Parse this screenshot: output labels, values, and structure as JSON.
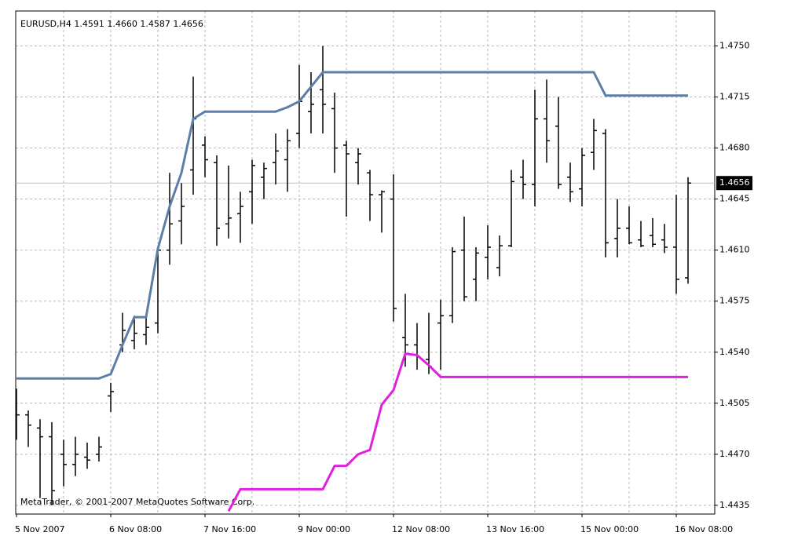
{
  "chart_data": {
    "type": "ohlc",
    "title": "EURUSD,H4  1.4591 1.4660 1.4587 1.4656",
    "credit": "MetaTrader, © 2001-2007 MetaQuotes Software Corp.",
    "categories": [
      "5 Nov 2007",
      null,
      null,
      null,
      null,
      null,
      null,
      null,
      "6 Nov 08:00",
      null,
      null,
      null,
      null,
      null,
      null,
      null,
      "7 Nov 16:00",
      null,
      null,
      null,
      null,
      null,
      null,
      null,
      "9 Nov 00:00",
      null,
      null,
      null,
      null,
      null,
      null,
      null,
      "12 Nov 08:00",
      null,
      null,
      null,
      null,
      null,
      null,
      null,
      "13 Nov 16:00",
      null,
      null,
      null,
      null,
      null,
      null,
      null,
      "15 Nov 00:00",
      null,
      null,
      null,
      null,
      null,
      null,
      null,
      "16 Nov 08:00",
      null
    ],
    "open": [
      1.4508,
      1.4497,
      1.4488,
      1.4482,
      1.447,
      1.4463,
      1.4468,
      1.447,
      1.451,
      1.4545,
      1.4548,
      1.4552,
      1.456,
      1.461,
      1.463,
      1.4665,
      1.4682,
      1.467,
      1.4628,
      1.4635,
      1.465,
      1.466,
      1.467,
      1.4672,
      1.469,
      1.4705,
      1.472,
      1.4707,
      1.4682,
      1.467,
      1.4663,
      1.4648,
      1.4645,
      1.455,
      1.4545,
      1.4535,
      1.456,
      1.4565,
      1.461,
      1.459,
      1.4605,
      1.4598,
      1.4613,
      1.466,
      1.4655,
      1.47,
      1.4695,
      1.466,
      1.4652,
      1.4677,
      1.469,
      1.4618,
      1.4625,
      1.4617,
      1.462,
      1.4617,
      1.4612,
      1.4591
    ],
    "high": [
      1.4515,
      1.45,
      1.4494,
      1.4492,
      1.448,
      1.4482,
      1.4478,
      1.4482,
      1.4519,
      1.4567,
      1.4565,
      1.4564,
      1.4611,
      1.4663,
      1.4656,
      1.4729,
      1.4688,
      1.4675,
      1.4668,
      1.465,
      1.4672,
      1.467,
      1.469,
      1.4693,
      1.4737,
      1.4732,
      1.475,
      1.4718,
      1.4685,
      1.468,
      1.4665,
      1.4651,
      1.4662,
      1.458,
      1.456,
      1.4567,
      1.4576,
      1.4612,
      1.4633,
      1.4612,
      1.4627,
      1.462,
      1.4665,
      1.4672,
      1.472,
      1.4727,
      1.4715,
      1.467,
      1.468,
      1.47,
      1.4693,
      1.4645,
      1.464,
      1.463,
      1.4632,
      1.4628,
      1.4648,
      1.466
    ],
    "low": [
      1.448,
      1.4475,
      1.444,
      1.4435,
      1.4448,
      1.4455,
      1.446,
      1.4465,
      1.4499,
      1.454,
      1.4542,
      1.4545,
      1.4553,
      1.46,
      1.4614,
      1.4648,
      1.466,
      1.4613,
      1.4618,
      1.4615,
      1.4628,
      1.4645,
      1.4655,
      1.465,
      1.468,
      1.469,
      1.469,
      1.4663,
      1.4633,
      1.4655,
      1.463,
      1.4622,
      1.4561,
      1.453,
      1.4528,
      1.4525,
      1.4528,
      1.456,
      1.4575,
      1.4575,
      1.459,
      1.4592,
      1.4612,
      1.4645,
      1.464,
      1.467,
      1.4652,
      1.4643,
      1.464,
      1.4665,
      1.4605,
      1.4605,
      1.4614,
      1.4612,
      1.4612,
      1.4608,
      1.458,
      1.4587
    ],
    "close": [
      1.4497,
      1.449,
      1.4482,
      1.4445,
      1.4463,
      1.447,
      1.4466,
      1.4475,
      1.4513,
      1.4555,
      1.4553,
      1.4557,
      1.461,
      1.4628,
      1.464,
      1.47,
      1.4672,
      1.4625,
      1.4632,
      1.464,
      1.4668,
      1.4666,
      1.4678,
      1.4685,
      1.4712,
      1.471,
      1.471,
      1.468,
      1.4676,
      1.4676,
      1.4648,
      1.465,
      1.457,
      1.4545,
      1.4537,
      1.453,
      1.4565,
      1.4609,
      1.4578,
      1.4608,
      1.4612,
      1.4613,
      1.4657,
      1.4655,
      1.47,
      1.4685,
      1.4655,
      1.465,
      1.4675,
      1.4692,
      1.4615,
      1.4625,
      1.4615,
      1.4613,
      1.4614,
      1.4612,
      1.459,
      1.4656
    ],
    "color": "#000000",
    "overlays": [
      {
        "color": "#5b7fa6",
        "values": [
          1.4522,
          1.4522,
          1.4522,
          1.4522,
          1.4522,
          1.4522,
          1.4522,
          1.4522,
          1.4525,
          1.4545,
          1.4564,
          1.4564,
          1.4611,
          1.464,
          1.4663,
          1.47,
          1.4705,
          1.4705,
          1.4705,
          1.4705,
          1.4705,
          1.4705,
          1.4705,
          1.4708,
          1.4712,
          1.4722,
          1.4732,
          1.4732,
          1.4732,
          1.4732,
          1.4732,
          1.4732,
          1.4732,
          1.4732,
          1.4732,
          1.4732,
          1.4732,
          1.4732,
          1.4732,
          1.4732,
          1.4732,
          1.4732,
          1.4732,
          1.4732,
          1.4732,
          1.4732,
          1.4732,
          1.4732,
          1.4732,
          1.4732,
          1.4716,
          1.4716,
          1.4716,
          1.4716,
          1.4716,
          1.4716,
          1.4716,
          1.4716
        ]
      },
      {
        "color": "#e020e0",
        "values": [
          null,
          null,
          null,
          null,
          null,
          null,
          null,
          null,
          null,
          null,
          null,
          null,
          null,
          null,
          null,
          null,
          null,
          null,
          1.4431,
          1.4446,
          1.4446,
          1.4446,
          1.4446,
          1.4446,
          1.4446,
          1.4446,
          1.4446,
          1.4462,
          1.4462,
          1.447,
          1.4473,
          1.4504,
          1.4514,
          1.4539,
          1.4538,
          1.4531,
          1.4523,
          1.4523,
          1.4523,
          1.4523,
          1.4523,
          1.4523,
          1.4523,
          1.4523,
          1.4523,
          1.4523,
          1.4523,
          1.4523,
          1.4523,
          1.4523,
          1.4523,
          1.4523,
          1.4523,
          1.4523,
          1.4523,
          1.4523,
          1.4523,
          1.4523
        ]
      }
    ],
    "last_price": 1.4656,
    "ylim": [
      1.4429,
      1.4774
    ],
    "yticks": [
      {
        "value": 1.475,
        "label": "1.4750"
      },
      1.4715,
      {
        "value": 1.468,
        "label": "1.4680"
      },
      1.4645,
      {
        "value": 1.461,
        "label": "1.4610"
      },
      1.4575,
      {
        "value": 1.454,
        "label": "1.4540"
      },
      1.4505,
      {
        "value": 1.447,
        "label": "1.4470"
      },
      1.4435
    ],
    "grid": true
  }
}
